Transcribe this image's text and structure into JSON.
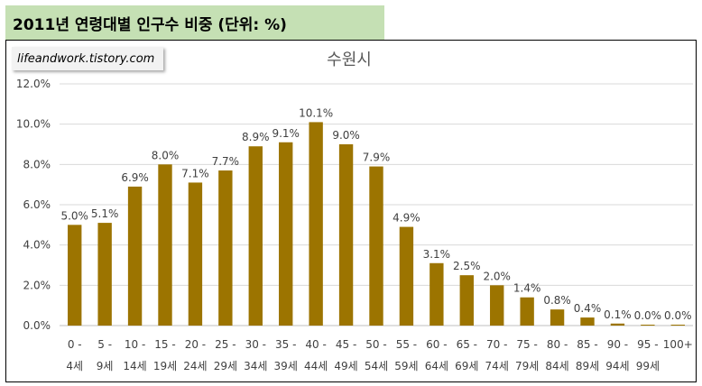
{
  "header": {
    "title": "2011년 연령대별 인구수 비중 (단위: %)"
  },
  "watermark": {
    "text": "lifeandwork.tistory.com"
  },
  "colors": {
    "bar": "#9c7400",
    "header_bg": "#c5e0b4",
    "grid": "#d9d9d9"
  },
  "chart_data": {
    "type": "bar",
    "title": "수원시",
    "categories": [
      "0 - 4세",
      "5 - 9세",
      "10 - 14세",
      "15 - 19세",
      "20 - 24세",
      "25 - 29세",
      "30 - 34세",
      "35 - 39세",
      "40 - 44세",
      "45 - 49세",
      "50 - 54세",
      "55 - 59세",
      "60 - 64세",
      "65 - 69세",
      "70 - 74세",
      "75 - 79세",
      "80 - 84세",
      "85 - 89세",
      "90 - 94세",
      "95 - 99세",
      "100+"
    ],
    "category_lines": [
      [
        "0 -",
        "4세"
      ],
      [
        "5 -",
        "9세"
      ],
      [
        "10 -",
        "14세"
      ],
      [
        "15 -",
        "19세"
      ],
      [
        "20 -",
        "24세"
      ],
      [
        "25 -",
        "29세"
      ],
      [
        "30 -",
        "34세"
      ],
      [
        "35 -",
        "39세"
      ],
      [
        "40 -",
        "44세"
      ],
      [
        "45 -",
        "49세"
      ],
      [
        "50 -",
        "54세"
      ],
      [
        "55 -",
        "59세"
      ],
      [
        "60 -",
        "64세"
      ],
      [
        "65 -",
        "69세"
      ],
      [
        "70 -",
        "74세"
      ],
      [
        "75 -",
        "79세"
      ],
      [
        "80 -",
        "84세"
      ],
      [
        "85 -",
        "89세"
      ],
      [
        "90 -",
        "94세"
      ],
      [
        "95 -",
        "99세"
      ],
      [
        "100+",
        ""
      ]
    ],
    "values": [
      5.0,
      5.1,
      6.9,
      8.0,
      7.1,
      7.7,
      8.9,
      9.1,
      10.1,
      9.0,
      7.9,
      4.9,
      3.1,
      2.5,
      2.0,
      1.4,
      0.8,
      0.4,
      0.1,
      0.0,
      0.0
    ],
    "data_labels": [
      "5.0%",
      "5.1%",
      "6.9%",
      "8.0%",
      "7.1%",
      "7.7%",
      "8.9%",
      "9.1%",
      "10.1%",
      "9.0%",
      "7.9%",
      "4.9%",
      "3.1%",
      "2.5%",
      "2.0%",
      "1.4%",
      "0.8%",
      "0.4%",
      "0.1%",
      "0.0%",
      "0.0%"
    ],
    "yticks": [
      0,
      2,
      4,
      6,
      8,
      10,
      12
    ],
    "ytick_labels": [
      "0.0%",
      "2.0%",
      "4.0%",
      "6.0%",
      "8.0%",
      "10.0%",
      "12.0%"
    ],
    "ylim": [
      0,
      12
    ],
    "grid": true,
    "legend": "none"
  }
}
